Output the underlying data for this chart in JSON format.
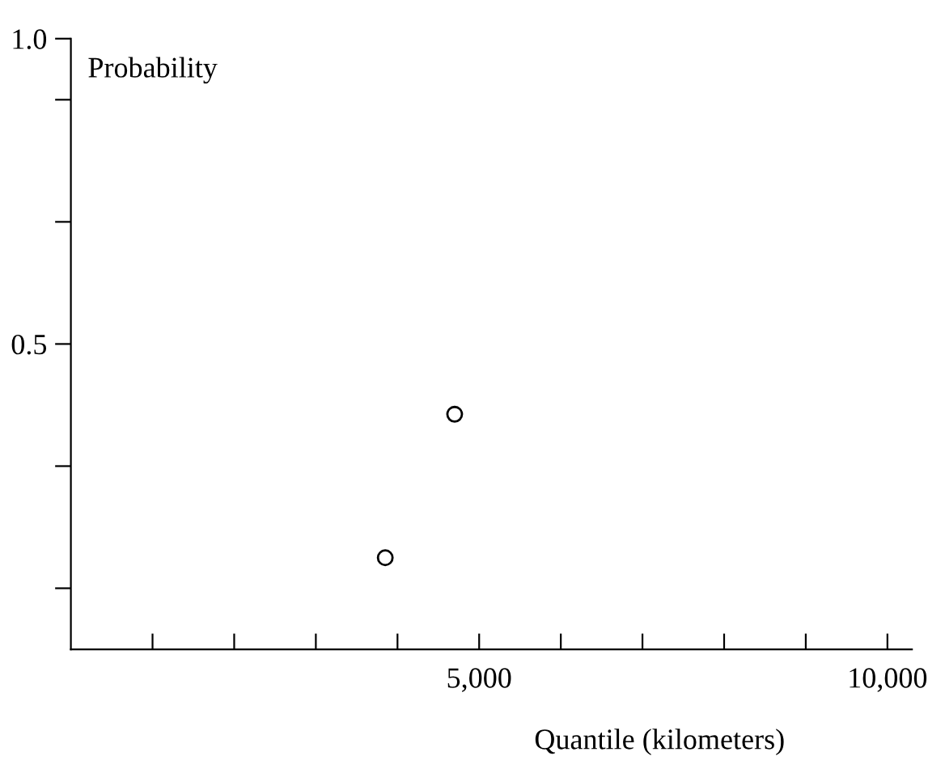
{
  "chart_data": {
    "type": "scatter",
    "xlabel": "Quantile (kilometers)",
    "ylabel": "Probability",
    "x": [
      3850,
      4700
    ],
    "series": [
      {
        "color": "#000000",
        "values": [
          0.15,
          0.385
        ]
      }
    ],
    "marker": "circle",
    "grid": false,
    "legend": false,
    "xlim": [
      0,
      10300
    ],
    "ylim": [
      0,
      1.0
    ],
    "xticks": [
      {
        "value": 1000,
        "label": null
      },
      {
        "value": 2000,
        "label": null
      },
      {
        "value": 3000,
        "label": null
      },
      {
        "value": 4000,
        "label": null
      },
      {
        "value": 5000,
        "label": "5,000"
      },
      {
        "value": 6000,
        "label": null
      },
      {
        "value": 7000,
        "label": null
      },
      {
        "value": 8000,
        "label": null
      },
      {
        "value": 9000,
        "label": null
      },
      {
        "value": 10000,
        "label": "10,000"
      }
    ],
    "yticks": [
      {
        "value": 0.1,
        "label": null
      },
      {
        "value": 0.3,
        "label": null
      },
      {
        "value": 0.5,
        "label": "0.5"
      },
      {
        "value": 0.7,
        "label": null
      },
      {
        "value": 0.9,
        "label": null
      },
      {
        "value": 1.0,
        "label": "1.0"
      }
    ]
  }
}
